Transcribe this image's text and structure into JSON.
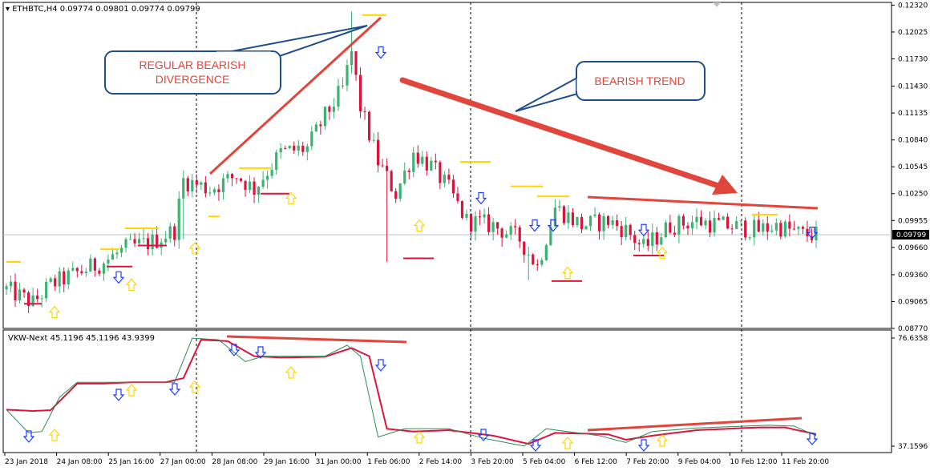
{
  "chart_data": [
    {
      "type": "candlestick",
      "title": "ETHBTC,H4 0.09774 0.09801 0.09774 0.09799",
      "symbol": "ETHBTC",
      "timeframe": "H4",
      "ohlc_header": [
        "0.09774",
        "0.09801",
        "0.09774",
        "0.09799"
      ],
      "ylim": [
        0.0877,
        0.1235
      ],
      "yticks": [
        "0.12320",
        "0.12025",
        "0.11730",
        "0.11430",
        "0.11135",
        "0.10840",
        "0.10545",
        "0.10250",
        "0.09955",
        "0.09660",
        "0.09360",
        "0.09065",
        "0.08770"
      ],
      "current_price": "0.09799",
      "xticks": [
        "23 Jan 2018",
        "24 Jan 08:00",
        "25 Jan 16:00",
        "27 Jan 00:00",
        "28 Jan 08:00",
        "29 Jan 16:00",
        "31 Jan 00:00",
        "1 Feb 06:00",
        "2 Feb 14:00",
        "3 Feb 20:00",
        "5 Feb 04:00",
        "6 Feb 12:00",
        "7 Feb 20:00",
        "9 Feb 04:00",
        "10 Feb 12:00",
        "11 Feb 20:00"
      ],
      "bull_color": "#3cb371",
      "bear_color": "#dc143c",
      "anchors": [
        {
          "i": 0,
          "p": 0.092
        },
        {
          "i": 6,
          "p": 0.0905
        },
        {
          "i": 10,
          "p": 0.0925
        },
        {
          "i": 17,
          "p": 0.094
        },
        {
          "i": 22,
          "p": 0.095
        },
        {
          "i": 27,
          "p": 0.0965
        },
        {
          "i": 33,
          "p": 0.0972
        },
        {
          "i": 38,
          "p": 0.0985
        },
        {
          "i": 40,
          "p": 0.104
        },
        {
          "i": 46,
          "p": 0.103
        },
        {
          "i": 52,
          "p": 0.1045
        },
        {
          "i": 56,
          "p": 0.103
        },
        {
          "i": 62,
          "p": 0.107
        },
        {
          "i": 68,
          "p": 0.1075
        },
        {
          "i": 72,
          "p": 0.111
        },
        {
          "i": 76,
          "p": 0.114
        },
        {
          "i": 78,
          "p": 0.118
        },
        {
          "i": 80,
          "p": 0.112
        },
        {
          "i": 84,
          "p": 0.106
        },
        {
          "i": 88,
          "p": 0.1025
        },
        {
          "i": 92,
          "p": 0.107
        },
        {
          "i": 96,
          "p": 0.1055
        },
        {
          "i": 100,
          "p": 0.103
        },
        {
          "i": 104,
          "p": 0.0995
        },
        {
          "i": 110,
          "p": 0.099
        },
        {
          "i": 116,
          "p": 0.0975
        },
        {
          "i": 120,
          "p": 0.0945
        },
        {
          "i": 124,
          "p": 0.101
        },
        {
          "i": 130,
          "p": 0.099
        },
        {
          "i": 136,
          "p": 0.0995
        },
        {
          "i": 140,
          "p": 0.0985
        },
        {
          "i": 144,
          "p": 0.0965
        },
        {
          "i": 150,
          "p": 0.099
        },
        {
          "i": 156,
          "p": 0.0995
        },
        {
          "i": 162,
          "p": 0.099
        },
        {
          "i": 166,
          "p": 0.0988
        },
        {
          "i": 170,
          "p": 0.0985
        },
        {
          "i": 174,
          "p": 0.099
        },
        {
          "i": 180,
          "p": 0.098
        },
        {
          "i": 183,
          "p": 0.098
        }
      ],
      "events": [
        {
          "i": 40,
          "low": 0.0975
        },
        {
          "i": 78,
          "high": 0.1225
        },
        {
          "i": 86,
          "low": 0.095
        },
        {
          "i": 118,
          "low": 0.093
        }
      ]
    },
    {
      "type": "line",
      "title": "VKW-Next 45.1196 45.1196 43.9399",
      "indicator": "VKW-Next",
      "header_values": [
        "45.1196",
        "45.1196",
        "43.9399"
      ],
      "ylim": [
        37.1596,
        76.6358
      ],
      "ytick_labels": [
        "76.6358",
        "37.1596"
      ],
      "series": [
        {
          "color": "#dc143c",
          "values": [
            {
              "i": 0,
              "v": 50.5
            },
            {
              "i": 6,
              "v": 50.0
            },
            {
              "i": 10,
              "v": 50.3
            },
            {
              "i": 16,
              "v": 60.0
            },
            {
              "i": 22,
              "v": 60.0
            },
            {
              "i": 28,
              "v": 60.5
            },
            {
              "i": 36,
              "v": 60.5
            },
            {
              "i": 40,
              "v": 62.0
            },
            {
              "i": 44,
              "v": 76.0
            },
            {
              "i": 50,
              "v": 75.5
            },
            {
              "i": 56,
              "v": 70.0
            },
            {
              "i": 62,
              "v": 69.5
            },
            {
              "i": 72,
              "v": 69.8
            },
            {
              "i": 78,
              "v": 73.0
            },
            {
              "i": 82,
              "v": 70.0
            },
            {
              "i": 86,
              "v": 43.5
            },
            {
              "i": 92,
              "v": 42.5
            },
            {
              "i": 100,
              "v": 43.0
            },
            {
              "i": 110,
              "v": 41.0
            },
            {
              "i": 118,
              "v": 38.0
            },
            {
              "i": 124,
              "v": 42.0
            },
            {
              "i": 136,
              "v": 41.5
            },
            {
              "i": 140,
              "v": 39.5
            },
            {
              "i": 146,
              "v": 41.0
            },
            {
              "i": 156,
              "v": 43.0
            },
            {
              "i": 170,
              "v": 44.0
            },
            {
              "i": 176,
              "v": 44.0
            },
            {
              "i": 183,
              "v": 41.5
            }
          ]
        },
        {
          "color": "#2e8b57",
          "values": [
            {
              "i": 0,
              "v": 50.5
            },
            {
              "i": 5,
              "v": 42.0
            },
            {
              "i": 8,
              "v": 42.5
            },
            {
              "i": 12,
              "v": 55.0
            },
            {
              "i": 16,
              "v": 60.5
            },
            {
              "i": 24,
              "v": 60.5
            },
            {
              "i": 30,
              "v": 60.5
            },
            {
              "i": 38,
              "v": 60.5
            },
            {
              "i": 42,
              "v": 76.6
            },
            {
              "i": 48,
              "v": 76.0
            },
            {
              "i": 54,
              "v": 68.0
            },
            {
              "i": 58,
              "v": 70.0
            },
            {
              "i": 72,
              "v": 70.0
            },
            {
              "i": 77,
              "v": 74.0
            },
            {
              "i": 80,
              "v": 70.0
            },
            {
              "i": 84,
              "v": 40.5
            },
            {
              "i": 90,
              "v": 43.5
            },
            {
              "i": 100,
              "v": 43.5
            },
            {
              "i": 108,
              "v": 40.0
            },
            {
              "i": 117,
              "v": 37.2
            },
            {
              "i": 122,
              "v": 43.5
            },
            {
              "i": 134,
              "v": 41.0
            },
            {
              "i": 140,
              "v": 38.5
            },
            {
              "i": 146,
              "v": 42.5
            },
            {
              "i": 156,
              "v": 43.8
            },
            {
              "i": 172,
              "v": 44.8
            },
            {
              "i": 178,
              "v": 44.5
            },
            {
              "i": 183,
              "v": 41.0
            }
          ]
        }
      ]
    }
  ],
  "annotations": {
    "divergence_label_line1": "REGULAR BEARISH",
    "divergence_label_line2": "DIVERGENCE",
    "trend_label": "BEARISH TREND"
  }
}
